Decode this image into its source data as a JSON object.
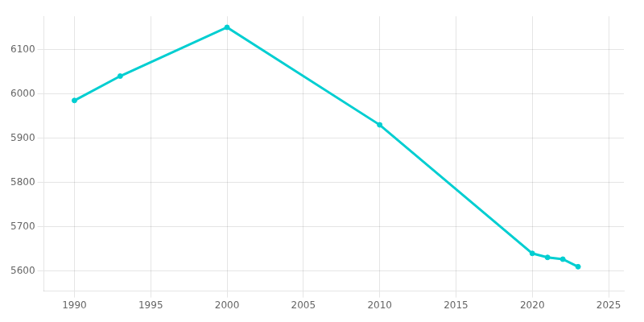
{
  "chart_data": {
    "type": "line",
    "x": [
      1990,
      1993,
      2000,
      2010,
      2020,
      2021,
      2022,
      2023
    ],
    "values": [
      5985,
      6040,
      6150,
      5930,
      5640,
      5631,
      5627,
      5610
    ],
    "color": "#00CED1",
    "marker": "circle",
    "xlim": [
      1988,
      2026
    ],
    "ylim": [
      5555,
      6175
    ],
    "xticks": [
      1990,
      1995,
      2000,
      2005,
      2010,
      2015,
      2020,
      2025
    ],
    "yticks": [
      5600,
      5700,
      5800,
      5900,
      6000,
      6100
    ],
    "grid": true
  }
}
